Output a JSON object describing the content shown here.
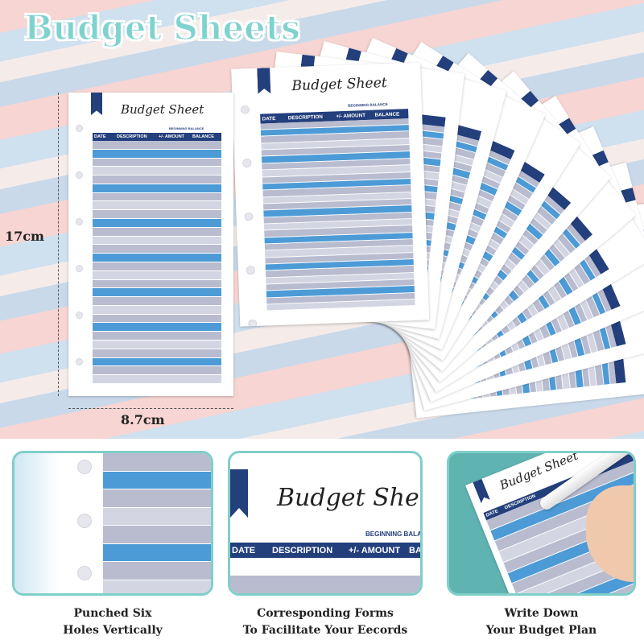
{
  "title": "Budget Sheets",
  "sheet": {
    "title": "Budget Sheet",
    "beginning_balance": "BEGINNING BALANCE",
    "columns": [
      "DATE",
      "DESCRIPTION",
      "+/- AMOUNT",
      "BALANCE"
    ]
  },
  "dimensions": {
    "height": "17cm",
    "width": "8.7cm"
  },
  "panels": [
    {
      "caption_line1": "Punched Six",
      "caption_line2": "Holes Vertically"
    },
    {
      "caption_line1": "Corresponding Forms",
      "caption_line2": "To Facilitate Your Eecords"
    },
    {
      "caption_line1": "Write Down",
      "caption_line2": "Your Budget Plan"
    }
  ],
  "colors": {
    "navy": "#233f7c",
    "blue": "#4d9bd6",
    "gray": "#b9bccf",
    "teal": "#7fcfc9"
  }
}
